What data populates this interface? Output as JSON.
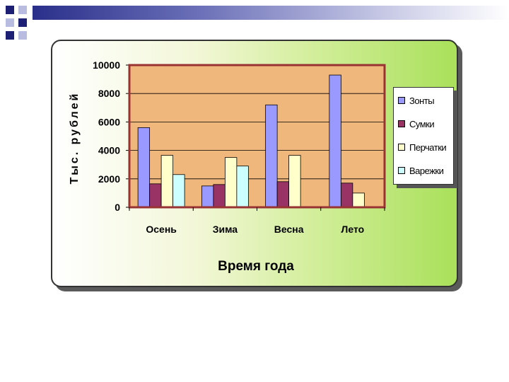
{
  "chart_data": {
    "type": "bar",
    "categories": [
      "Осень",
      "Зима",
      "Весна",
      "Лето"
    ],
    "series": [
      {
        "name": "Зонты",
        "color": "#9999ff",
        "values": [
          5600,
          1500,
          7200,
          9300
        ]
      },
      {
        "name": "Сумки",
        "color": "#993366",
        "values": [
          1650,
          1600,
          1800,
          1700
        ]
      },
      {
        "name": "Перчатки",
        "color": "#ffffcc",
        "values": [
          3650,
          3500,
          3650,
          1000
        ]
      },
      {
        "name": "Варежки",
        "color": "#ccffff",
        "values": [
          2300,
          2900,
          50,
          0
        ]
      }
    ],
    "title": "",
    "xlabel": "Время года",
    "ylabel": "Тыс. рублей",
    "ylim": [
      0,
      10000
    ],
    "yticks": [
      0,
      2000,
      4000,
      6000,
      8000,
      10000
    ],
    "ytick_labels": [
      "0",
      "2000",
      "4000",
      "6000",
      "8000",
      "10000"
    ],
    "grid": true,
    "legend_position": "right",
    "plot_background": "#efb77c",
    "plot_border_color": "#993333"
  },
  "decor": {
    "accent_dark": "#1c1f73",
    "accent_light": "#b8bce0"
  }
}
